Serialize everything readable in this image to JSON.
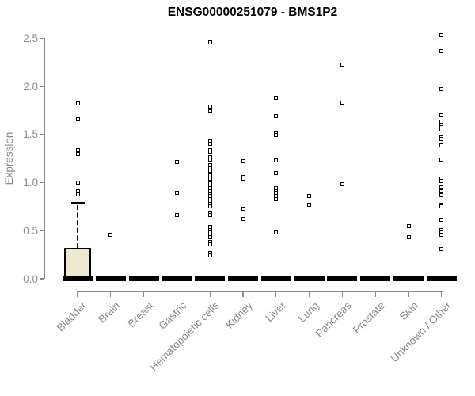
{
  "chart_data": {
    "type": "boxplot",
    "title": "ENSG00000251079 - BMS1P2",
    "ylabel": "Expression",
    "xlabel": "",
    "ylim": [
      0.0,
      2.5
    ],
    "yticks": [
      "0.0",
      "0.5",
      "1.0",
      "1.5",
      "2.0",
      "2.5"
    ],
    "grid": false,
    "legend": null,
    "colors": {
      "box_fill": "#EDE8CE",
      "box_border": "#000000",
      "axis": "#8a8a8a",
      "point": "#000000",
      "title": "#000000"
    },
    "categories": [
      "Bladder",
      "Brain",
      "Breast",
      "Gastric",
      "Hematopoietic cells",
      "Kidney",
      "Liver",
      "Lung",
      "Pancreas",
      "Prostate",
      "Skin",
      "Unknown / Other"
    ],
    "series": [
      {
        "category": "Bladder",
        "q1": 0,
        "median": 0,
        "q3": 0.32,
        "whisker_low": 0,
        "whisker_high": 0.79,
        "outliers": [
          1.82,
          1.66,
          1.34,
          1.3,
          1.0,
          0.91,
          0.88
        ]
      },
      {
        "category": "Brain",
        "q1": 0,
        "median": 0,
        "q3": 0,
        "whisker_low": 0,
        "whisker_high": 0,
        "outliers": [
          0.46
        ]
      },
      {
        "category": "Breast",
        "q1": 0,
        "median": 0,
        "q3": 0,
        "whisker_low": 0,
        "whisker_high": 0,
        "outliers": []
      },
      {
        "category": "Gastric",
        "q1": 0,
        "median": 0,
        "q3": 0,
        "whisker_low": 0,
        "whisker_high": 0,
        "outliers": [
          1.21,
          0.89,
          0.66
        ]
      },
      {
        "category": "Hematopoietic cells",
        "q1": 0,
        "median": 0,
        "q3": 0,
        "whisker_low": 0,
        "whisker_high": 0,
        "outliers": [
          2.46,
          1.79,
          1.74,
          1.43,
          1.4,
          1.34,
          1.32,
          1.26,
          1.24,
          1.18,
          1.15,
          1.12,
          1.07,
          1.04,
          0.99,
          0.96,
          0.94,
          0.91,
          0.88,
          0.86,
          0.83,
          0.8,
          0.78,
          0.75,
          0.68,
          0.66,
          0.54,
          0.51,
          0.48,
          0.45,
          0.43,
          0.38,
          0.36,
          0.27,
          0.24
        ]
      },
      {
        "category": "Kidney",
        "q1": 0,
        "median": 0,
        "q3": 0,
        "whisker_low": 0,
        "whisker_high": 0,
        "outliers": [
          1.22,
          1.06,
          1.04,
          0.73,
          0.62
        ]
      },
      {
        "category": "Liver",
        "q1": 0,
        "median": 0,
        "q3": 0,
        "whisker_low": 0,
        "whisker_high": 0,
        "outliers": [
          1.88,
          1.69,
          1.51,
          1.49,
          1.23,
          1.1,
          0.94,
          0.91,
          0.89,
          0.86,
          0.83,
          0.48
        ]
      },
      {
        "category": "Lung",
        "q1": 0,
        "median": 0,
        "q3": 0,
        "whisker_low": 0,
        "whisker_high": 0,
        "outliers": [
          0.86,
          0.77
        ]
      },
      {
        "category": "Pancreas",
        "q1": 0,
        "median": 0,
        "q3": 0,
        "whisker_low": 0,
        "whisker_high": 0,
        "outliers": [
          2.23,
          1.83,
          0.98
        ]
      },
      {
        "category": "Prostate",
        "q1": 0,
        "median": 0,
        "q3": 0,
        "whisker_low": 0,
        "whisker_high": 0,
        "outliers": []
      },
      {
        "category": "Skin",
        "q1": 0,
        "median": 0,
        "q3": 0,
        "whisker_low": 0,
        "whisker_high": 0,
        "outliers": [
          0.55,
          0.43
        ]
      },
      {
        "category": "Unknown / Other",
        "q1": 0,
        "median": 0,
        "q3": 0,
        "whisker_low": 0,
        "whisker_high": 0,
        "outliers": [
          2.53,
          2.37,
          1.97,
          1.7,
          1.63,
          1.6,
          1.58,
          1.55,
          1.47,
          1.45,
          1.39,
          1.24,
          1.04,
          1.02,
          0.95,
          0.91,
          0.87,
          0.77,
          0.75,
          0.61,
          0.51,
          0.48,
          0.46,
          0.31
        ]
      }
    ]
  }
}
